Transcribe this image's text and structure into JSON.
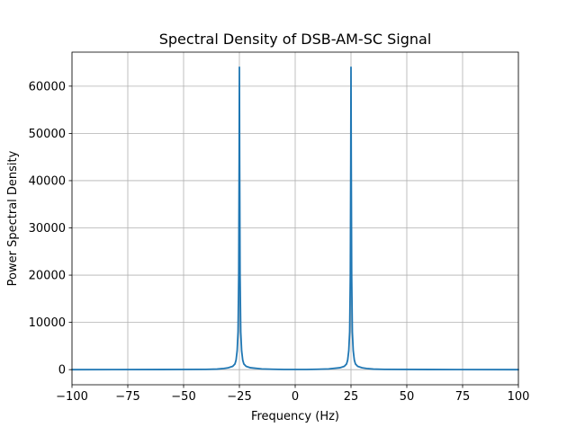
{
  "chart_data": {
    "type": "line",
    "title": "Spectral Density of DSB-AM-SC Signal",
    "xlabel": "Frequency (Hz)",
    "ylabel": "Power Spectral Density",
    "xlim": [
      -100,
      100
    ],
    "ylim": [
      -3200,
      67200
    ],
    "x_ticks": [
      -100,
      -75,
      -50,
      -25,
      0,
      25,
      50,
      75,
      100
    ],
    "y_ticks": [
      0,
      10000,
      20000,
      30000,
      40000,
      50000,
      60000
    ],
    "grid": true,
    "legend": "none",
    "line_color": "#1f77b4",
    "grid_color": "#b0b0b0",
    "series": [
      {
        "x": [
          -100,
          -60,
          -40,
          -35,
          -32,
          -30,
          -28,
          -27,
          -26.5,
          -26,
          -25.6,
          -25.3,
          -25.1,
          -25,
          -24.9,
          -24.7,
          -24.4,
          -24,
          -23.5,
          -23,
          -22,
          -20,
          -15,
          -10,
          -5,
          0,
          5,
          10,
          15,
          20,
          22,
          23,
          23.5,
          24,
          24.4,
          24.7,
          24.9,
          25,
          25.1,
          25.3,
          25.6,
          26,
          26.5,
          27,
          28,
          30,
          32,
          35,
          40,
          60,
          100
        ],
        "y": [
          0,
          20,
          60,
          120,
          250,
          400,
          700,
          1200,
          2000,
          4000,
          8000,
          20000,
          45000,
          64000,
          45000,
          20000,
          8000,
          4000,
          2000,
          1200,
          700,
          400,
          150,
          80,
          40,
          30,
          40,
          80,
          150,
          400,
          700,
          1200,
          2000,
          4000,
          8000,
          20000,
          45000,
          64000,
          45000,
          20000,
          8000,
          4000,
          2000,
          1200,
          700,
          400,
          250,
          120,
          60,
          20,
          0
        ]
      }
    ]
  }
}
